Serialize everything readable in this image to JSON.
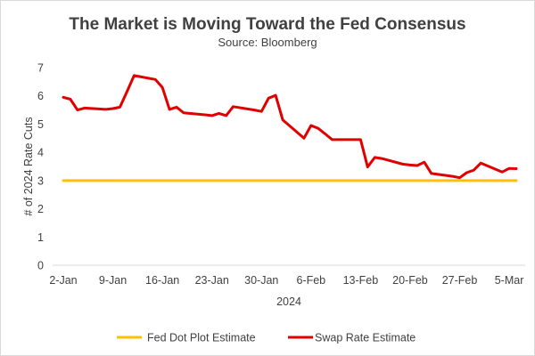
{
  "chart_data": {
    "type": "line",
    "title": "The Market is Moving Toward the Fed Consensus",
    "subtitle": "Source: Bloomberg",
    "xlabel": "2024",
    "ylabel": "# of 2024 Rate Cuts",
    "ylim": [
      0,
      7
    ],
    "yticks": [
      "0",
      "1",
      "2",
      "3",
      "4",
      "5",
      "6",
      "7"
    ],
    "x_tick_labels": [
      "2-Jan",
      "9-Jan",
      "16-Jan",
      "23-Jan",
      "30-Jan",
      "6-Feb",
      "13-Feb",
      "20-Feb",
      "27-Feb",
      "5-Mar"
    ],
    "grid": false,
    "legend_position": "bottom",
    "series": [
      {
        "name": "Fed Dot Plot Estimate",
        "color": "#FFC000",
        "x": [
          "2024-01-02",
          "2024-03-06"
        ],
        "values": [
          3,
          3
        ]
      },
      {
        "name": "Swap Rate Estimate",
        "color": "#E00000",
        "x": [
          "2024-01-02",
          "2024-01-03",
          "2024-01-04",
          "2024-01-05",
          "2024-01-08",
          "2024-01-09",
          "2024-01-10",
          "2024-01-11",
          "2024-01-12",
          "2024-01-15",
          "2024-01-16",
          "2024-01-17",
          "2024-01-18",
          "2024-01-19",
          "2024-01-22",
          "2024-01-23",
          "2024-01-24",
          "2024-01-25",
          "2024-01-26",
          "2024-01-29",
          "2024-01-30",
          "2024-01-31",
          "2024-02-01",
          "2024-02-02",
          "2024-02-05",
          "2024-02-06",
          "2024-02-07",
          "2024-02-08",
          "2024-02-09",
          "2024-02-12",
          "2024-02-13",
          "2024-02-14",
          "2024-02-15",
          "2024-02-16",
          "2024-02-19",
          "2024-02-20",
          "2024-02-21",
          "2024-02-22",
          "2024-02-23",
          "2024-02-26",
          "2024-02-27",
          "2024-02-28",
          "2024-02-29",
          "2024-03-01",
          "2024-03-04",
          "2024-03-05",
          "2024-03-06"
        ],
        "values": [
          5.95,
          5.88,
          5.5,
          5.57,
          5.52,
          5.55,
          5.6,
          6.15,
          6.72,
          6.58,
          6.3,
          5.52,
          5.6,
          5.4,
          5.33,
          5.3,
          5.38,
          5.3,
          5.62,
          5.5,
          5.45,
          5.92,
          6.02,
          5.15,
          4.5,
          4.95,
          4.85,
          4.65,
          4.45,
          4.45,
          4.45,
          3.48,
          3.82,
          3.78,
          3.58,
          3.55,
          3.53,
          3.65,
          3.25,
          3.15,
          3.1,
          3.28,
          3.37,
          3.62,
          3.3,
          3.43,
          3.42
        ]
      }
    ]
  }
}
